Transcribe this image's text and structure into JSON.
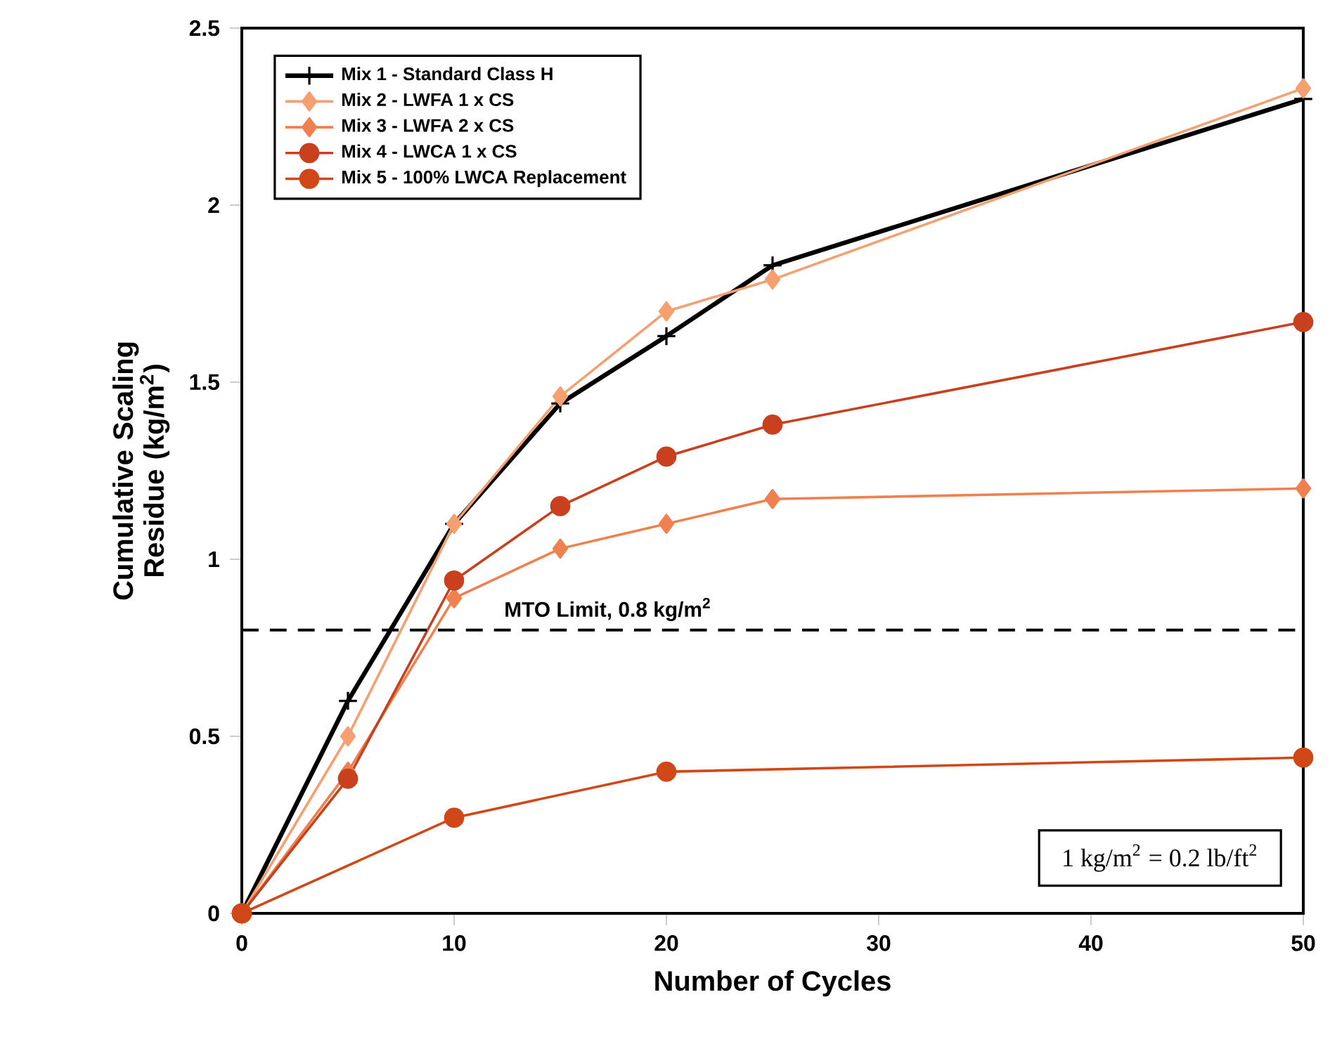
{
  "chart_data": {
    "type": "line",
    "xlabel": "Number of Cycles",
    "ylabel": "Cumulative Scaling Residue (kg/m$^{2}$)",
    "xlim": [
      0,
      50
    ],
    "xticks": [
      0,
      10,
      20,
      30,
      40,
      50
    ],
    "ylim": [
      0,
      2.5
    ],
    "yticks": [
      0,
      0.5,
      1,
      1.5,
      2,
      2.5
    ],
    "legend": "top left",
    "grid": false,
    "line_style": "solid",
    "series": [
      {
        "name": "Mix 1 - Standard Class H",
        "color": "#000000",
        "marker": "cross",
        "x": [
          0,
          5,
          10,
          15,
          20,
          25,
          50
        ],
        "values": [
          0,
          0.6,
          1.1,
          1.44,
          1.63,
          1.83,
          2.3
        ]
      },
      {
        "name": "Mix 2 - LWFA 1 x CS",
        "color": "#f5a070",
        "marker": "diamond",
        "x": [
          0,
          5,
          10,
          15,
          20,
          25,
          50
        ],
        "values": [
          0,
          0.5,
          1.1,
          1.46,
          1.7,
          1.79,
          2.33
        ]
      },
      {
        "name": "Mix 3 - LWFA 2 x CS",
        "color": "#f08050",
        "marker": "diamond",
        "x": [
          0,
          5,
          10,
          15,
          20,
          25,
          50
        ],
        "values": [
          0,
          0.4,
          0.89,
          1.03,
          1.1,
          1.17,
          1.2
        ]
      },
      {
        "name": "Mix 4 - LWCA 1 x CS",
        "color": "#c8401e",
        "marker": "circle",
        "x": [
          0,
          5,
          10,
          15,
          20,
          25,
          50
        ],
        "values": [
          0,
          0.38,
          0.94,
          1.15,
          1.29,
          1.38,
          1.67
        ]
      },
      {
        "name": "Mix 5 - 100% LWCA Replacement",
        "color": "#d04818",
        "marker": "circle",
        "x": [
          0,
          10,
          20,
          50
        ],
        "values": [
          0,
          0.27,
          0.4,
          0.44
        ]
      }
    ],
    "ref_lines": [
      {
        "axis": "y",
        "value": 0.8,
        "label": "MTO Limit, 0.8 kg/m$^{2}$",
        "color": "#000000",
        "line_style": "dashed"
      }
    ],
    "annotations": [
      "1 kg/m$^{2}$ = 0.2 lb/ft$^{2}$"
    ]
  }
}
